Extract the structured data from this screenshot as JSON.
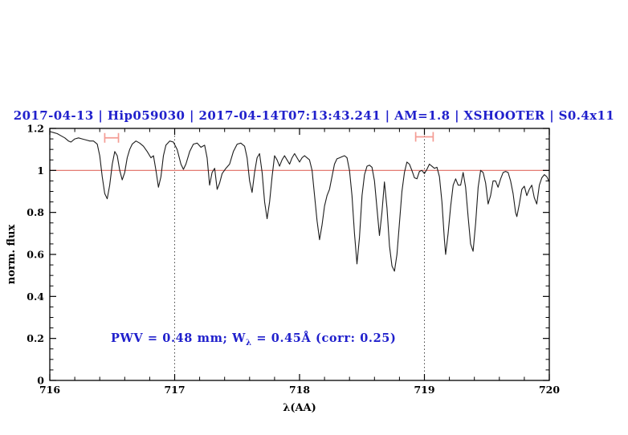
{
  "title": {
    "text": "2017-04-13 | Hip059030 | 2017-04-14T07:13:43.241 | AM=1.8 | XSHOOTER | S0.4x11",
    "color": "#2020cc"
  },
  "annotation": {
    "pre": "PWV = 0.48 mm; W",
    "sub": "λ",
    "post": " = 0.45Å (corr: 0.25)",
    "color": "#2020cc"
  },
  "colors": {
    "spectrum": "#1c1c1c",
    "continuum": "#e06a60",
    "marker": "#f49c94",
    "axis": "#000000",
    "dotted_line": "#444444",
    "accent_blue": "#2020cc"
  },
  "chart_data": {
    "type": "line",
    "title": "2017-04-13 | Hip059030 | 2017-04-14T07:13:43.241 | AM=1.8 | XSHOOTER | S0.4x11",
    "xlabel": "λ(AA)",
    "ylabel": "norm. flux",
    "xlim": [
      716,
      720
    ],
    "ylim": [
      0,
      1.2
    ],
    "grid": false,
    "legend_position": "none",
    "x_ticks": {
      "major": [
        716,
        717,
        718,
        719,
        720
      ],
      "labels": [
        "716",
        "717",
        "718",
        "719",
        "720"
      ],
      "minor_step": 0.2
    },
    "y_ticks": {
      "major": [
        0,
        0.2,
        0.4,
        0.6,
        0.8,
        1,
        1.2
      ],
      "labels": [
        "0",
        "0.2",
        "0.4",
        "0.6",
        "0.8",
        "1",
        "1.2"
      ],
      "minor_step": 0.05
    },
    "continuum_line": {
      "y": 1.0
    },
    "dotted_vlines": [
      717,
      719
    ],
    "telluric_markers": [
      {
        "x1": 716.44,
        "x2": 716.55,
        "y": 1.155
      },
      {
        "x1": 718.93,
        "x2": 719.07,
        "y": 1.16
      }
    ],
    "series": [
      {
        "name": "normalized spectrum",
        "points": [
          [
            716.0,
            1.185
          ],
          [
            716.03,
            1.18
          ],
          [
            716.06,
            1.175
          ],
          [
            716.09,
            1.165
          ],
          [
            716.12,
            1.155
          ],
          [
            716.15,
            1.14
          ],
          [
            716.17,
            1.135
          ],
          [
            716.2,
            1.15
          ],
          [
            716.23,
            1.155
          ],
          [
            716.26,
            1.15
          ],
          [
            716.29,
            1.145
          ],
          [
            716.32,
            1.14
          ],
          [
            716.35,
            1.14
          ],
          [
            716.38,
            1.125
          ],
          [
            716.4,
            1.07
          ],
          [
            716.42,
            0.97
          ],
          [
            716.44,
            0.89
          ],
          [
            716.46,
            0.865
          ],
          [
            716.48,
            0.93
          ],
          [
            716.5,
            1.03
          ],
          [
            716.52,
            1.09
          ],
          [
            716.54,
            1.07
          ],
          [
            716.56,
            1.0
          ],
          [
            716.58,
            0.955
          ],
          [
            716.6,
            0.99
          ],
          [
            716.62,
            1.06
          ],
          [
            716.64,
            1.1
          ],
          [
            716.66,
            1.125
          ],
          [
            716.69,
            1.14
          ],
          [
            716.72,
            1.13
          ],
          [
            716.75,
            1.115
          ],
          [
            716.78,
            1.09
          ],
          [
            716.81,
            1.06
          ],
          [
            716.83,
            1.07
          ],
          [
            716.85,
            1.0
          ],
          [
            716.87,
            0.92
          ],
          [
            716.89,
            0.97
          ],
          [
            716.91,
            1.07
          ],
          [
            716.93,
            1.12
          ],
          [
            716.96,
            1.14
          ],
          [
            716.99,
            1.135
          ],
          [
            717.02,
            1.1
          ],
          [
            717.05,
            1.03
          ],
          [
            717.07,
            1.005
          ],
          [
            717.09,
            1.03
          ],
          [
            717.12,
            1.09
          ],
          [
            717.15,
            1.125
          ],
          [
            717.18,
            1.13
          ],
          [
            717.21,
            1.11
          ],
          [
            717.24,
            1.12
          ],
          [
            717.26,
            1.06
          ],
          [
            717.28,
            0.93
          ],
          [
            717.3,
            0.99
          ],
          [
            717.32,
            1.01
          ],
          [
            717.34,
            0.91
          ],
          [
            717.36,
            0.94
          ],
          [
            717.38,
            0.985
          ],
          [
            717.41,
            1.01
          ],
          [
            717.44,
            1.03
          ],
          [
            717.47,
            1.09
          ],
          [
            717.5,
            1.125
          ],
          [
            717.53,
            1.13
          ],
          [
            717.56,
            1.115
          ],
          [
            717.58,
            1.06
          ],
          [
            717.6,
            0.95
          ],
          [
            717.62,
            0.895
          ],
          [
            717.64,
            0.99
          ],
          [
            717.66,
            1.06
          ],
          [
            717.68,
            1.08
          ],
          [
            717.7,
            0.99
          ],
          [
            717.72,
            0.85
          ],
          [
            717.74,
            0.77
          ],
          [
            717.76,
            0.85
          ],
          [
            717.78,
            0.97
          ],
          [
            717.8,
            1.07
          ],
          [
            717.82,
            1.05
          ],
          [
            717.84,
            1.02
          ],
          [
            717.86,
            1.05
          ],
          [
            717.88,
            1.07
          ],
          [
            717.9,
            1.05
          ],
          [
            717.92,
            1.03
          ],
          [
            717.94,
            1.06
          ],
          [
            717.96,
            1.08
          ],
          [
            717.98,
            1.06
          ],
          [
            718.0,
            1.04
          ],
          [
            718.02,
            1.06
          ],
          [
            718.04,
            1.07
          ],
          [
            718.06,
            1.06
          ],
          [
            718.08,
            1.05
          ],
          [
            718.1,
            1.0
          ],
          [
            718.12,
            0.88
          ],
          [
            718.14,
            0.76
          ],
          [
            718.16,
            0.67
          ],
          [
            718.18,
            0.74
          ],
          [
            718.2,
            0.83
          ],
          [
            718.22,
            0.88
          ],
          [
            718.24,
            0.91
          ],
          [
            718.26,
            0.97
          ],
          [
            718.28,
            1.03
          ],
          [
            718.3,
            1.055
          ],
          [
            718.32,
            1.06
          ],
          [
            718.34,
            1.065
          ],
          [
            718.36,
            1.07
          ],
          [
            718.38,
            1.06
          ],
          [
            718.4,
            1.0
          ],
          [
            718.42,
            0.88
          ],
          [
            718.44,
            0.7
          ],
          [
            718.46,
            0.555
          ],
          [
            718.48,
            0.68
          ],
          [
            718.5,
            0.88
          ],
          [
            718.52,
            0.98
          ],
          [
            718.54,
            1.02
          ],
          [
            718.56,
            1.025
          ],
          [
            718.58,
            1.015
          ],
          [
            718.6,
            0.95
          ],
          [
            718.62,
            0.82
          ],
          [
            718.64,
            0.69
          ],
          [
            718.66,
            0.8
          ],
          [
            718.68,
            0.945
          ],
          [
            718.7,
            0.82
          ],
          [
            718.72,
            0.64
          ],
          [
            718.74,
            0.545
          ],
          [
            718.76,
            0.52
          ],
          [
            718.78,
            0.6
          ],
          [
            718.8,
            0.75
          ],
          [
            718.82,
            0.9
          ],
          [
            718.84,
            0.99
          ],
          [
            718.86,
            1.04
          ],
          [
            718.88,
            1.03
          ],
          [
            718.9,
            1.0
          ],
          [
            718.92,
            0.965
          ],
          [
            718.94,
            0.96
          ],
          [
            718.96,
            0.995
          ],
          [
            718.98,
            1.0
          ],
          [
            719.0,
            0.985
          ],
          [
            719.02,
            1.005
          ],
          [
            719.04,
            1.03
          ],
          [
            719.06,
            1.02
          ],
          [
            719.08,
            1.01
          ],
          [
            719.1,
            1.015
          ],
          [
            719.12,
            0.97
          ],
          [
            719.14,
            0.85
          ],
          [
            719.16,
            0.67
          ],
          [
            719.17,
            0.6
          ],
          [
            719.19,
            0.7
          ],
          [
            719.21,
            0.83
          ],
          [
            719.23,
            0.93
          ],
          [
            719.25,
            0.96
          ],
          [
            719.27,
            0.93
          ],
          [
            719.29,
            0.93
          ],
          [
            719.31,
            0.99
          ],
          [
            719.33,
            0.92
          ],
          [
            719.35,
            0.78
          ],
          [
            719.37,
            0.65
          ],
          [
            719.39,
            0.615
          ],
          [
            719.41,
            0.75
          ],
          [
            719.43,
            0.92
          ],
          [
            719.45,
            1.0
          ],
          [
            719.47,
            0.99
          ],
          [
            719.49,
            0.94
          ],
          [
            719.51,
            0.84
          ],
          [
            719.53,
            0.88
          ],
          [
            719.55,
            0.95
          ],
          [
            719.57,
            0.95
          ],
          [
            719.59,
            0.92
          ],
          [
            719.61,
            0.96
          ],
          [
            719.63,
            0.99
          ],
          [
            719.65,
            0.995
          ],
          [
            719.67,
            0.99
          ],
          [
            719.69,
            0.95
          ],
          [
            719.71,
            0.89
          ],
          [
            719.73,
            0.8
          ],
          [
            719.74,
            0.78
          ],
          [
            719.76,
            0.84
          ],
          [
            719.78,
            0.91
          ],
          [
            719.8,
            0.925
          ],
          [
            719.82,
            0.88
          ],
          [
            719.84,
            0.91
          ],
          [
            719.86,
            0.93
          ],
          [
            719.88,
            0.87
          ],
          [
            719.9,
            0.84
          ],
          [
            719.92,
            0.93
          ],
          [
            719.94,
            0.965
          ],
          [
            719.96,
            0.98
          ],
          [
            719.98,
            0.97
          ],
          [
            720.0,
            0.945
          ]
        ]
      }
    ]
  }
}
